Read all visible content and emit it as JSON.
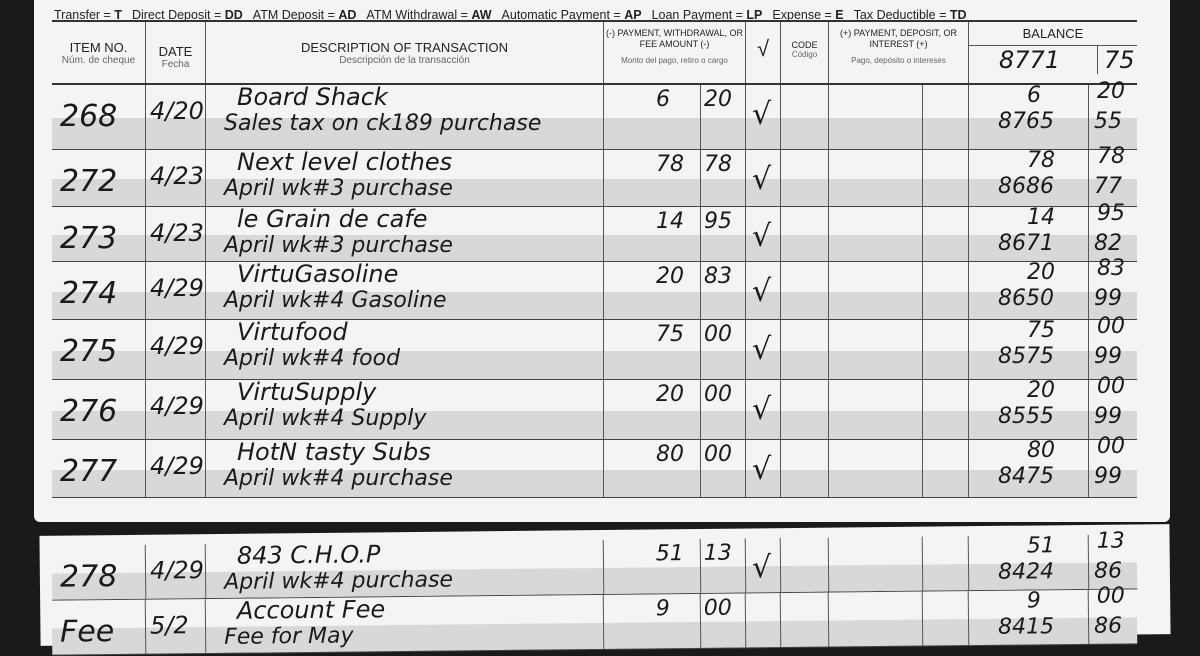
{
  "legend": [
    {
      "label": "Transfer = ",
      "code": "T"
    },
    {
      "label": "Direct Deposit = ",
      "code": "DD"
    },
    {
      "label": "ATM Deposit = ",
      "code": "AD"
    },
    {
      "label": "ATM Withdrawal = ",
      "code": "AW"
    },
    {
      "label": "Automatic Payment = ",
      "code": "AP"
    },
    {
      "label": "Loan Payment = ",
      "code": "LP"
    },
    {
      "label": "Expense = ",
      "code": "E"
    },
    {
      "label": "Tax Deductible = ",
      "code": "TD"
    }
  ],
  "header": {
    "item_no": "ITEM NO.",
    "item_no_es": "Núm. de cheque",
    "date": "DATE",
    "date_es": "Fecha",
    "description": "DESCRIPTION OF TRANSACTION",
    "description_es": "Descripción de la transacción",
    "payment": "(-) PAYMENT, WITHDRAWAL, OR FEE AMOUNT (-)",
    "payment_es": "Monto del pago, retiro o cargo",
    "check": "√",
    "code": "CODE",
    "code_es": "Código",
    "deposit": "(+) PAYMENT, DEPOSIT, OR INTEREST (+)",
    "deposit_es": "Pago, depósito o intereses",
    "balance": "BALANCE",
    "start_balance_dollars": "8771",
    "start_balance_cents": "75"
  },
  "rows": [
    {
      "item": "268",
      "date": "4/20",
      "line1": "Board Shack",
      "line2": "Sales tax on ck189 purchase",
      "pay_d": "6",
      "pay_c": "20",
      "checked": "√",
      "sub_d": "6",
      "sub_c": "20",
      "bal_d": "8765",
      "bal_c": "55"
    },
    {
      "item": "272",
      "date": "4/23",
      "line1": "Next level clothes",
      "line2": "April wk#3 purchase",
      "pay_d": "78",
      "pay_c": "78",
      "checked": "√",
      "sub_d": "78",
      "sub_c": "78",
      "bal_d": "8686",
      "bal_c": "77"
    },
    {
      "item": "273",
      "date": "4/23",
      "line1": "le Grain de cafe",
      "line2": "April wk#3 purchase",
      "pay_d": "14",
      "pay_c": "95",
      "checked": "√",
      "sub_d": "14",
      "sub_c": "95",
      "bal_d": "8671",
      "bal_c": "82"
    },
    {
      "item": "274",
      "date": "4/29",
      "line1": "VirtuGasoline",
      "line2": "April wk#4 Gasoline",
      "pay_d": "20",
      "pay_c": "83",
      "checked": "√",
      "sub_d": "20",
      "sub_c": "83",
      "bal_d": "8650",
      "bal_c": "99"
    },
    {
      "item": "275",
      "date": "4/29",
      "line1": "Virtufood",
      "line2": "April wk#4 food",
      "pay_d": "75",
      "pay_c": "00",
      "checked": "√",
      "sub_d": "75",
      "sub_c": "00",
      "bal_d": "8575",
      "bal_c": "99"
    },
    {
      "item": "276",
      "date": "4/29",
      "line1": "VirtuSupply",
      "line2": "April wk#4 Supply",
      "pay_d": "20",
      "pay_c": "00",
      "checked": "√",
      "sub_d": "20",
      "sub_c": "00",
      "bal_d": "8555",
      "bal_c": "99"
    },
    {
      "item": "277",
      "date": "4/29",
      "line1": "HotN tasty Subs",
      "line2": "April wk#4 purchase",
      "pay_d": "80",
      "pay_c": "00",
      "checked": "√",
      "sub_d": "80",
      "sub_c": "00",
      "bal_d": "8475",
      "bal_c": "99"
    }
  ],
  "rows_bottom": [
    {
      "item": "278",
      "date": "4/29",
      "line1": "843 C.H.O.P",
      "line2": "April wk#4 purchase",
      "pay_d": "51",
      "pay_c": "13",
      "checked": "√",
      "sub_d": "51",
      "sub_c": "13",
      "bal_d": "8424",
      "bal_c": "86"
    },
    {
      "item": "Fee",
      "date": "5/2",
      "line1": "Account Fee",
      "line2": "Fee for May",
      "pay_d": "9",
      "pay_c": "00",
      "checked": "",
      "sub_d": "9",
      "sub_c": "00",
      "bal_d": "8415",
      "bal_c": "86"
    }
  ]
}
